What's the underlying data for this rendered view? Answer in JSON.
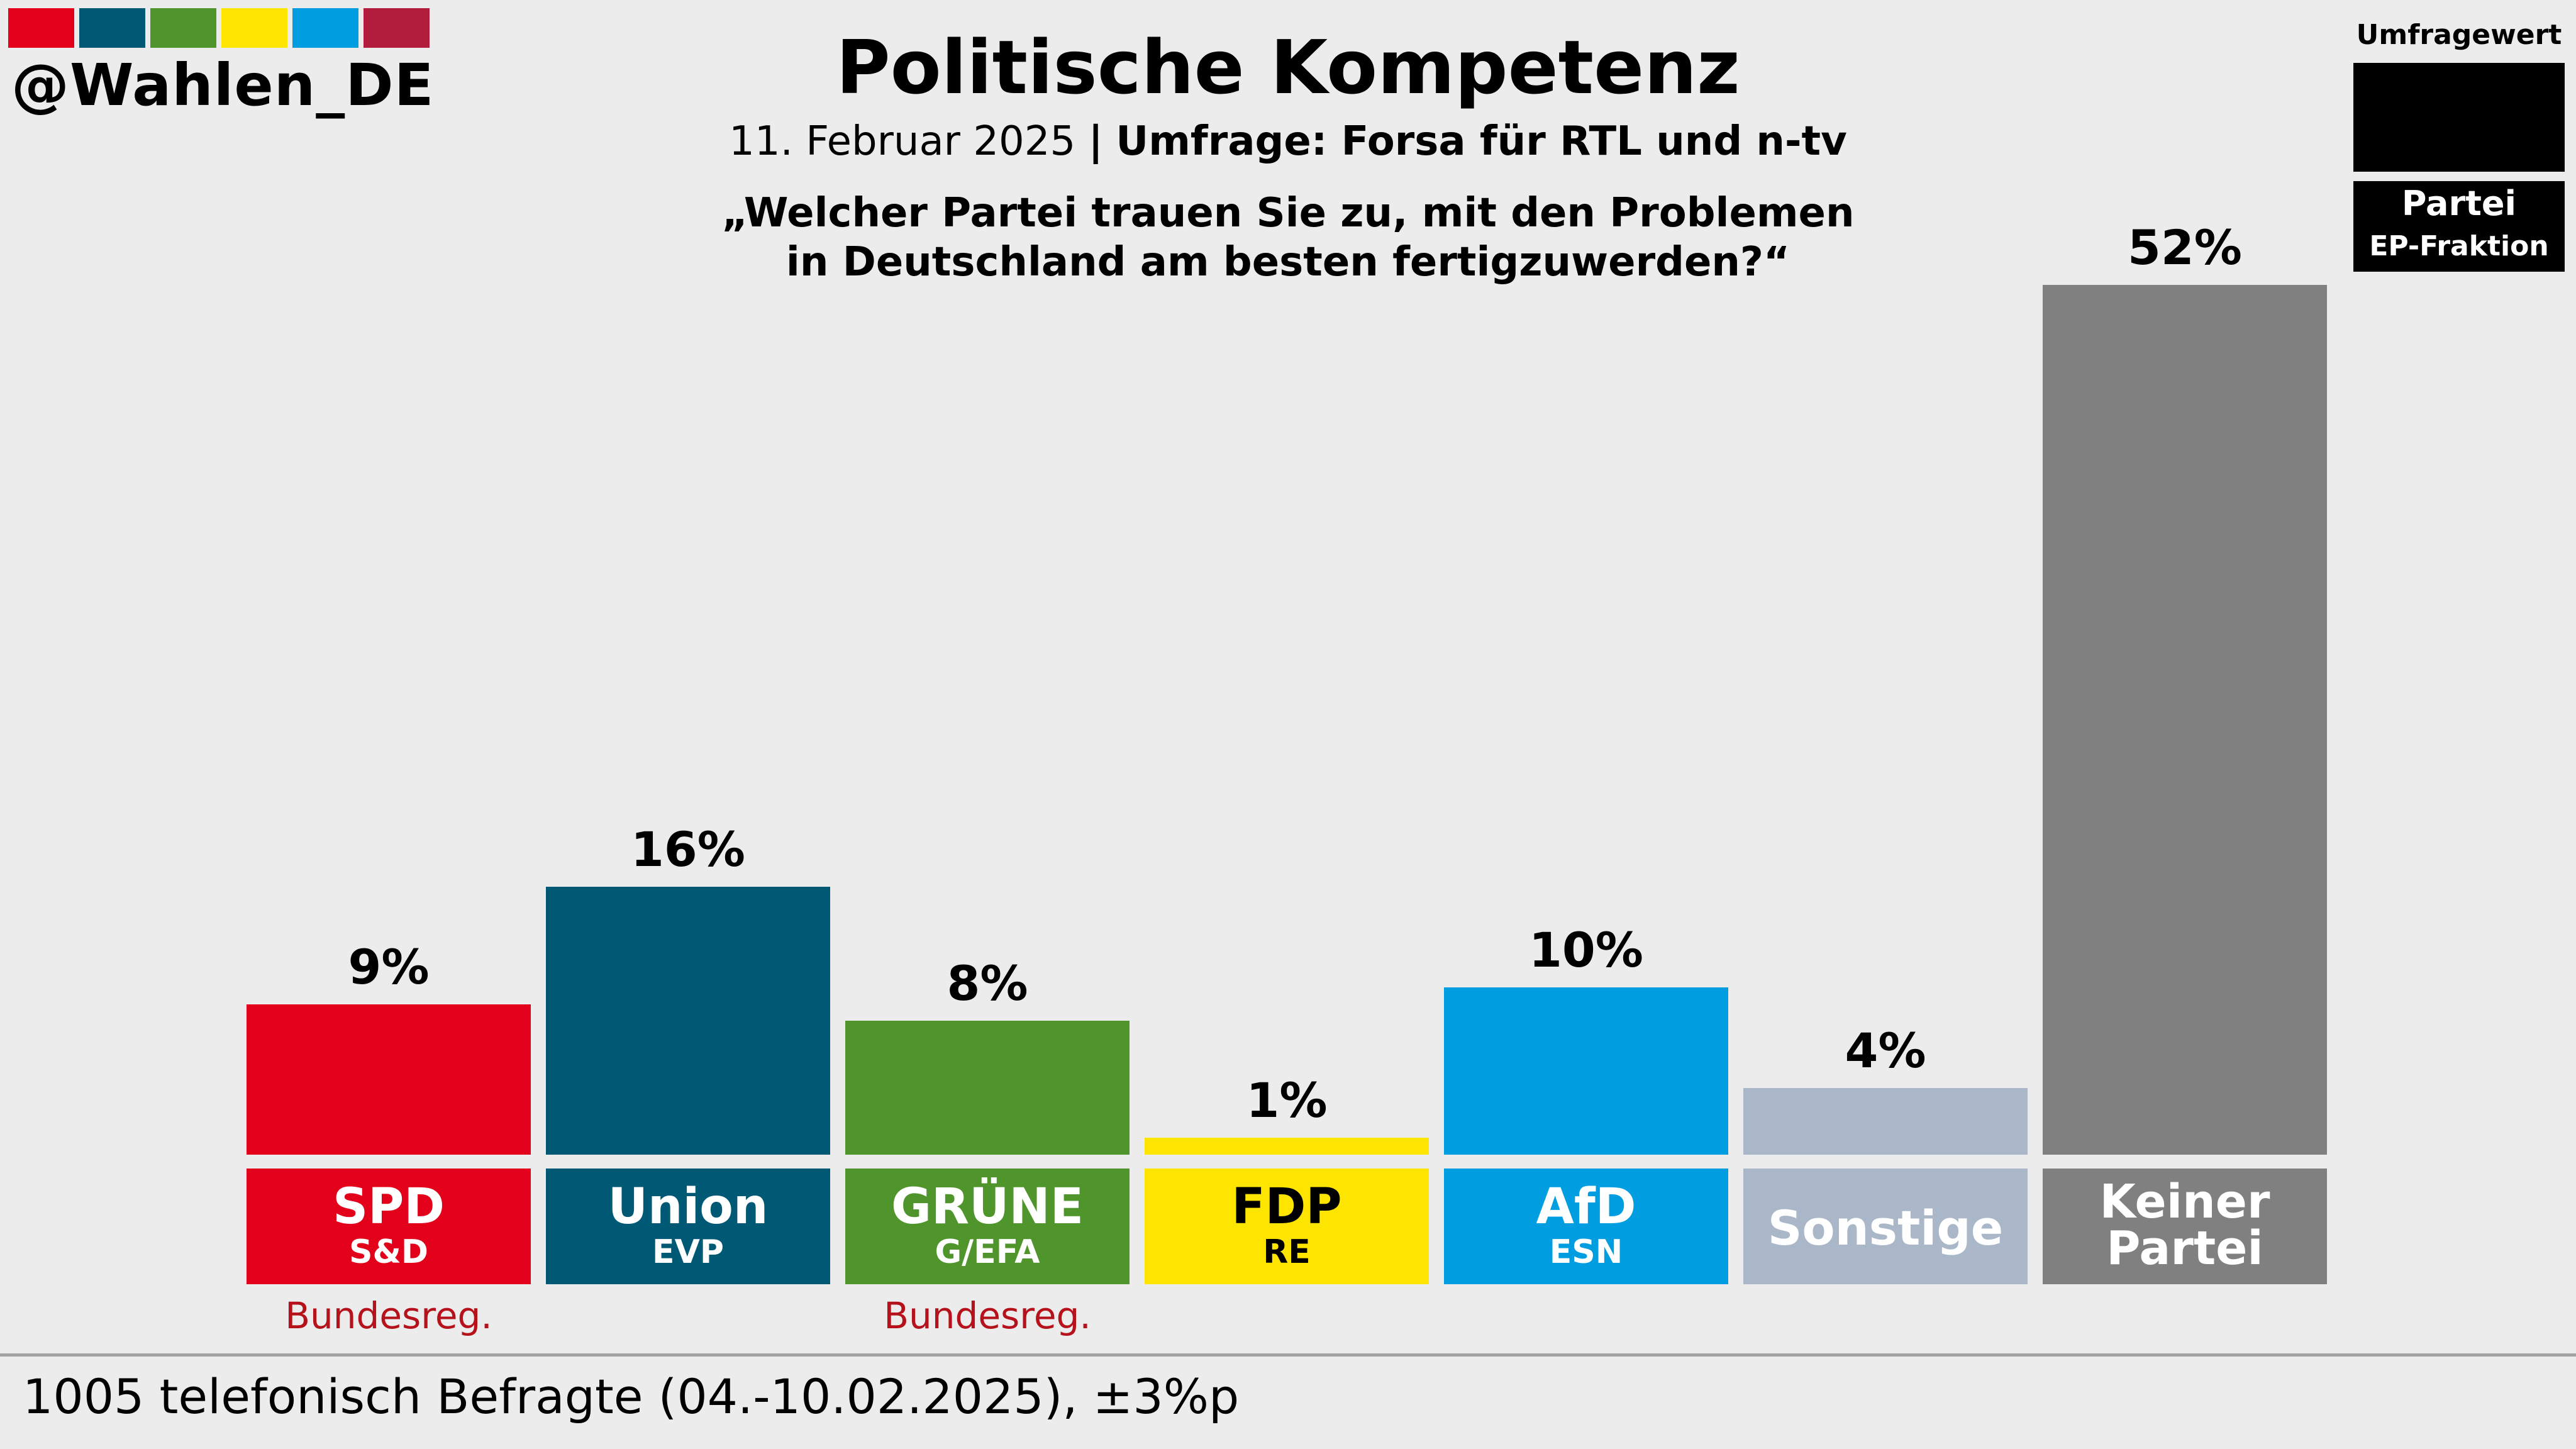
{
  "brand": {
    "handle": "@Wahlen_DE",
    "strip_colors": [
      "#e3001b",
      "#005974",
      "#50952c",
      "#fee500",
      "#009ee0",
      "#b21d3e"
    ]
  },
  "header": {
    "title": "Politische Kompetenz",
    "date": "11. Februar 2025",
    "separator": "|",
    "source": "Umfrage: Forsa für RTL und n-tv",
    "question_line1": "„Welcher Partei trauen Sie zu, mit den Problemen",
    "question_line2": "in Deutschland am besten fertigzuwerden?“"
  },
  "legend": {
    "heading": "Umfragewert",
    "party": "Partei",
    "group": "EP-Fraktion"
  },
  "chart_data": {
    "type": "bar",
    "title": "Politische Kompetenz",
    "unit": "%",
    "ylim": [
      0,
      52
    ],
    "categories": [
      "SPD",
      "Union",
      "GRÜNE",
      "FDP",
      "AfD",
      "Sonstige",
      "Keiner Partei"
    ],
    "values": [
      9,
      16,
      8,
      1,
      10,
      4,
      52
    ],
    "labels": [
      "9%",
      "16%",
      "8%",
      "1%",
      "10%",
      "4%",
      "52%"
    ],
    "parties": [
      {
        "name": "SPD",
        "name_line2": "",
        "group": "S&D",
        "note": "Bundesreg.",
        "color": "#e3001b",
        "text_color": "#ffffff"
      },
      {
        "name": "Union",
        "name_line2": "",
        "group": "EVP",
        "note": "",
        "color": "#005974",
        "text_color": "#ffffff"
      },
      {
        "name": "GRÜNE",
        "name_line2": "",
        "group": "G/EFA",
        "note": "Bundesreg.",
        "color": "#50952c",
        "text_color": "#ffffff"
      },
      {
        "name": "FDP",
        "name_line2": "",
        "group": "RE",
        "note": "",
        "color": "#fee500",
        "text_color": "#000000"
      },
      {
        "name": "AfD",
        "name_line2": "",
        "group": "ESN",
        "note": "",
        "color": "#009ee0",
        "text_color": "#ffffff"
      },
      {
        "name": "Sonstige",
        "name_line2": "",
        "group": "",
        "note": "",
        "color": "#aab7c8",
        "text_color": "#ffffff"
      },
      {
        "name": "Keiner",
        "name_line2": "Partei",
        "group": "",
        "note": "",
        "color": "#808080",
        "text_color": "#ffffff"
      }
    ]
  },
  "footer": {
    "text": "1005 telefonisch Befragte (04.-10.02.2025), ±3%p"
  }
}
